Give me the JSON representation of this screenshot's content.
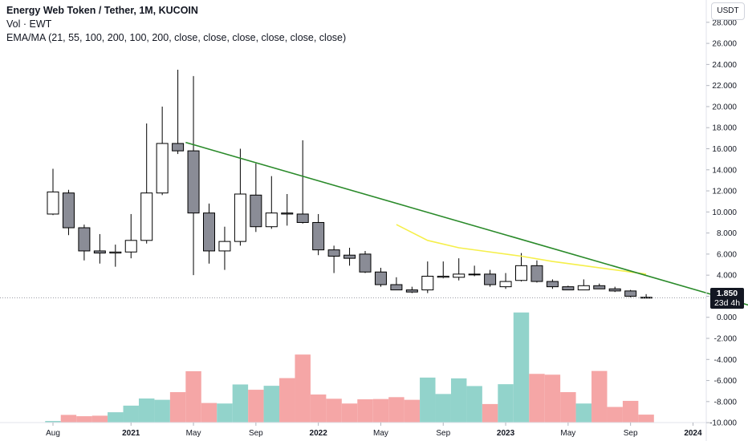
{
  "legend": {
    "title": "Energy Web Token / Tether, 1M, KUCOIN",
    "volume": "Vol · EWT",
    "ema": "EMA/MA (21, 55, 100, 200, 100, 200, close, close, close, close, close, close)"
  },
  "currency_button": "USDT",
  "last_price": {
    "value": "1.850",
    "countdown": "23d 4h"
  },
  "colors": {
    "up": "#ffffff",
    "down": "#8a8c96",
    "vol_up": "#92d3cb",
    "vol_down": "#f5a6a6",
    "trendline": "#2a8a2a",
    "ema": "#f5ef4a"
  },
  "chart_data": {
    "type": "candlestick",
    "price_axis": {
      "ticks": [
        "28.000",
        "26.000",
        "24.000",
        "22.000",
        "20.000",
        "18.000",
        "16.000",
        "14.000",
        "12.000",
        "10.000",
        "8.000",
        "6.000",
        "4.000",
        "2.000",
        "0.000",
        "-2.000",
        "-4.000",
        "-6.000",
        "-8.000",
        "-10.000"
      ],
      "range": [
        -10.6,
        28.9
      ]
    },
    "time_axis": {
      "labels": [
        {
          "text": "Aug",
          "bold": false,
          "month": 0
        },
        {
          "text": "2021",
          "bold": true,
          "month": 5
        },
        {
          "text": "May",
          "bold": false,
          "month": 9
        },
        {
          "text": "Sep",
          "bold": false,
          "month": 13
        },
        {
          "text": "2022",
          "bold": true,
          "month": 17
        },
        {
          "text": "May",
          "bold": false,
          "month": 21
        },
        {
          "text": "Sep",
          "bold": false,
          "month": 25
        },
        {
          "text": "2023",
          "bold": true,
          "month": 29
        },
        {
          "text": "May",
          "bold": false,
          "month": 33
        },
        {
          "text": "Sep",
          "bold": false,
          "month": 37
        },
        {
          "text": "2024",
          "bold": true,
          "month": 41
        }
      ]
    },
    "start_month": "2020-08",
    "candles": [
      {
        "o": 9.8,
        "h": 14.1,
        "l": 9.7,
        "c": 11.9
      },
      {
        "o": 11.8,
        "h": 12.1,
        "l": 7.8,
        "c": 8.5
      },
      {
        "o": 8.5,
        "h": 8.8,
        "l": 5.4,
        "c": 6.3
      },
      {
        "o": 6.3,
        "h": 7.9,
        "l": 5.1,
        "c": 6.1
      },
      {
        "o": 6.1,
        "h": 6.9,
        "l": 4.8,
        "c": 6.2
      },
      {
        "o": 6.2,
        "h": 9.8,
        "l": 5.6,
        "c": 7.3
      },
      {
        "o": 7.3,
        "h": 18.4,
        "l": 7.0,
        "c": 11.8
      },
      {
        "o": 11.8,
        "h": 20.0,
        "l": 11.6,
        "c": 16.5
      },
      {
        "o": 16.5,
        "h": 23.5,
        "l": 15.5,
        "c": 15.8
      },
      {
        "o": 15.8,
        "h": 22.9,
        "l": 4.0,
        "c": 9.9
      },
      {
        "o": 9.9,
        "h": 10.8,
        "l": 5.1,
        "c": 6.3
      },
      {
        "o": 6.3,
        "h": 8.6,
        "l": 4.5,
        "c": 7.2
      },
      {
        "o": 7.2,
        "h": 16.0,
        "l": 6.8,
        "c": 11.7
      },
      {
        "o": 11.6,
        "h": 14.6,
        "l": 8.1,
        "c": 8.6
      },
      {
        "o": 8.6,
        "h": 13.4,
        "l": 8.4,
        "c": 9.9
      },
      {
        "o": 9.9,
        "h": 11.7,
        "l": 8.7,
        "c": 9.8
      },
      {
        "o": 9.8,
        "h": 16.8,
        "l": 8.9,
        "c": 9.0
      },
      {
        "o": 9.0,
        "h": 9.8,
        "l": 5.9,
        "c": 6.4
      },
      {
        "o": 6.4,
        "h": 6.8,
        "l": 4.2,
        "c": 5.8
      },
      {
        "o": 5.9,
        "h": 6.6,
        "l": 4.9,
        "c": 5.6
      },
      {
        "o": 6.0,
        "h": 6.3,
        "l": 4.2,
        "c": 4.3
      },
      {
        "o": 4.3,
        "h": 4.7,
        "l": 2.9,
        "c": 3.1
      },
      {
        "o": 3.1,
        "h": 3.8,
        "l": 2.7,
        "c": 2.6
      },
      {
        "o": 2.6,
        "h": 2.9,
        "l": 2.3,
        "c": 2.4
      },
      {
        "o": 2.6,
        "h": 5.3,
        "l": 2.3,
        "c": 3.9
      },
      {
        "o": 3.8,
        "h": 5.3,
        "l": 3.7,
        "c": 3.9
      },
      {
        "o": 3.8,
        "h": 5.6,
        "l": 3.5,
        "c": 4.1
      },
      {
        "o": 4.1,
        "h": 4.9,
        "l": 3.9,
        "c": 4.1
      },
      {
        "o": 4.1,
        "h": 4.5,
        "l": 2.9,
        "c": 3.1
      },
      {
        "o": 2.9,
        "h": 4.2,
        "l": 2.7,
        "c": 3.4
      },
      {
        "o": 3.5,
        "h": 6.1,
        "l": 3.4,
        "c": 4.9
      },
      {
        "o": 4.9,
        "h": 5.4,
        "l": 3.3,
        "c": 3.4
      },
      {
        "o": 3.4,
        "h": 3.6,
        "l": 2.7,
        "c": 2.9
      },
      {
        "o": 2.9,
        "h": 3.0,
        "l": 2.6,
        "c": 2.6
      },
      {
        "o": 2.6,
        "h": 3.6,
        "l": 2.6,
        "c": 3.0
      },
      {
        "o": 3.0,
        "h": 3.2,
        "l": 2.7,
        "c": 2.7
      },
      {
        "o": 2.7,
        "h": 2.9,
        "l": 2.4,
        "c": 2.5
      },
      {
        "o": 2.5,
        "h": 2.6,
        "l": 1.9,
        "c": 2.0
      },
      {
        "o": 1.9,
        "h": 2.2,
        "l": 1.8,
        "c": 1.85
      }
    ],
    "volume_relative": [
      0.06,
      0.29,
      0.24,
      0.26,
      0.39,
      0.64,
      0.91,
      0.86,
      1.15,
      1.94,
      0.74,
      0.72,
      1.44,
      1.24,
      1.39,
      1.68,
      2.57,
      1.06,
      0.9,
      0.72,
      0.88,
      0.89,
      0.96,
      0.86,
      1.7,
      1.08,
      1.67,
      1.38,
      0.7,
      1.45,
      4.16,
      1.84,
      1.81,
      1.15,
      0.72,
      1.95,
      0.59,
      0.82,
      0.3
    ],
    "trendline": [
      {
        "month": 8.5,
        "price": 16.6
      },
      {
        "month": 47.5,
        "price": -0.1
      }
    ],
    "ema": [
      {
        "month": 22,
        "price": 8.8
      },
      {
        "month": 24,
        "price": 7.3
      },
      {
        "month": 26,
        "price": 6.6
      },
      {
        "month": 28,
        "price": 6.2
      },
      {
        "month": 30,
        "price": 5.8
      },
      {
        "month": 32,
        "price": 5.3
      },
      {
        "month": 34,
        "price": 4.9
      },
      {
        "month": 36,
        "price": 4.5
      },
      {
        "month": 38,
        "price": 4.1
      }
    ],
    "last_price_line": 1.85
  }
}
